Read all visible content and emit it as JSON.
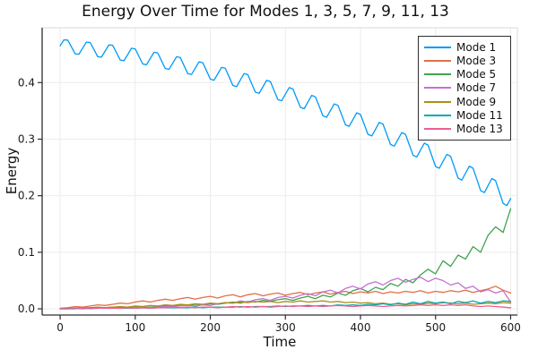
{
  "title": "Energy Over Time for Modes 1, 3, 5, 7, 9, 11, 13",
  "chart_data": {
    "type": "line",
    "title": "Energy Over Time for Modes 1, 3, 5, 7, 9, 11, 13",
    "xlabel": "Time",
    "ylabel": "Energy",
    "xlim": [
      -24,
      609
    ],
    "ylim": [
      -0.011,
      0.497
    ],
    "xticks": [
      0,
      100,
      200,
      300,
      400,
      500,
      600
    ],
    "xticklabels": [
      "0",
      "100",
      "200",
      "300",
      "400",
      "500",
      "600"
    ],
    "yticks": [
      0.0,
      0.1,
      0.2,
      0.3,
      0.4
    ],
    "yticklabels": [
      "0.0",
      "0.1",
      "0.2",
      "0.3",
      "0.4"
    ],
    "grid": true,
    "legend_position": "top-right",
    "background": "#ffffff",
    "grid_color": "#ececec",
    "spine_color": "#2e2e2e",
    "frame_color": "#d9d9d9",
    "series": [
      {
        "name": "Mode 1",
        "color": "#009AFA",
        "x_start": 0,
        "x_step": 5,
        "y": [
          0.465,
          0.4757,
          0.4751,
          0.4631,
          0.451,
          0.4502,
          0.4609,
          0.4717,
          0.4709,
          0.4585,
          0.4459,
          0.445,
          0.4558,
          0.4667,
          0.4658,
          0.4529,
          0.4399,
          0.4388,
          0.4497,
          0.4607,
          0.4596,
          0.4463,
          0.4329,
          0.4316,
          0.4427,
          0.4537,
          0.4525,
          0.4388,
          0.4249,
          0.4235,
          0.4346,
          0.4458,
          0.4443,
          0.4302,
          0.416,
          0.4144,
          0.4256,
          0.4369,
          0.4352,
          0.4207,
          0.406,
          0.4043,
          0.4155,
          0.4269,
          0.4252,
          0.4102,
          0.395,
          0.3931,
          0.4045,
          0.416,
          0.414,
          0.3986,
          0.3831,
          0.381,
          0.3925,
          0.404,
          0.402,
          0.3861,
          0.3701,
          0.3679,
          0.3795,
          0.3911,
          0.3888,
          0.3726,
          0.3563,
          0.3538,
          0.3655,
          0.3773,
          0.3748,
          0.3581,
          0.3413,
          0.3388,
          0.3505,
          0.3623,
          0.3598,
          0.3427,
          0.3254,
          0.3227,
          0.3345,
          0.3465,
          0.3437,
          0.3262,
          0.3085,
          0.3057,
          0.3176,
          0.3296,
          0.3267,
          0.3087,
          0.2906,
          0.2876,
          0.2996,
          0.3117,
          0.3086,
          0.2903,
          0.2718,
          0.2685,
          0.2807,
          0.2929,
          0.2896,
          0.2708,
          0.2519,
          0.2485,
          0.2607,
          0.273,
          0.2697,
          0.2504,
          0.2311,
          0.2275,
          0.2398,
          0.2522,
          0.2486,
          0.229,
          0.2092,
          0.2055,
          0.2179,
          0.2304,
          0.2267,
          0.2066,
          0.1863,
          0.1825,
          0.195
        ]
      },
      {
        "name": "Mode 3",
        "color": "#E26F47",
        "x_start": 0,
        "x_step": 10,
        "y": [
          0.001,
          0.002,
          0.004,
          0.003,
          0.005,
          0.007,
          0.006,
          0.008,
          0.01,
          0.009,
          0.012,
          0.014,
          0.012,
          0.015,
          0.017,
          0.015,
          0.018,
          0.02,
          0.017,
          0.02,
          0.022,
          0.019,
          0.023,
          0.025,
          0.021,
          0.025,
          0.027,
          0.023,
          0.026,
          0.028,
          0.024,
          0.027,
          0.029,
          0.025,
          0.028,
          0.03,
          0.026,
          0.029,
          0.031,
          0.027,
          0.03,
          0.028,
          0.031,
          0.027,
          0.03,
          0.028,
          0.031,
          0.029,
          0.032,
          0.028,
          0.031,
          0.029,
          0.032,
          0.03,
          0.033,
          0.029,
          0.032,
          0.035,
          0.04,
          0.033,
          0.028
        ]
      },
      {
        "name": "Mode 5",
        "color": "#3EA44E",
        "x_start": 0,
        "x_step": 10,
        "y": [
          0.0,
          0.0,
          0.001,
          0.001,
          0.001,
          0.002,
          0.002,
          0.003,
          0.002,
          0.003,
          0.004,
          0.004,
          0.005,
          0.004,
          0.006,
          0.005,
          0.007,
          0.006,
          0.008,
          0.007,
          0.009,
          0.008,
          0.01,
          0.012,
          0.01,
          0.013,
          0.012,
          0.015,
          0.013,
          0.016,
          0.018,
          0.015,
          0.019,
          0.022,
          0.018,
          0.024,
          0.021,
          0.028,
          0.024,
          0.032,
          0.036,
          0.03,
          0.038,
          0.034,
          0.045,
          0.04,
          0.052,
          0.046,
          0.06,
          0.07,
          0.062,
          0.085,
          0.075,
          0.095,
          0.088,
          0.11,
          0.1,
          0.13,
          0.145,
          0.135,
          0.177
        ]
      },
      {
        "name": "Mode 7",
        "color": "#C371D2",
        "x_start": 0,
        "x_step": 10,
        "y": [
          0.0,
          0.0,
          0.0,
          0.001,
          0.001,
          0.001,
          0.001,
          0.002,
          0.001,
          0.002,
          0.002,
          0.003,
          0.002,
          0.003,
          0.004,
          0.004,
          0.005,
          0.006,
          0.005,
          0.007,
          0.006,
          0.009,
          0.011,
          0.01,
          0.014,
          0.012,
          0.016,
          0.018,
          0.015,
          0.02,
          0.022,
          0.019,
          0.024,
          0.027,
          0.023,
          0.03,
          0.033,
          0.028,
          0.036,
          0.04,
          0.035,
          0.044,
          0.048,
          0.042,
          0.05,
          0.054,
          0.047,
          0.052,
          0.056,
          0.048,
          0.054,
          0.05,
          0.042,
          0.046,
          0.036,
          0.04,
          0.03,
          0.034,
          0.028,
          0.032,
          0.012
        ]
      },
      {
        "name": "Mode 9",
        "color": "#AC8E18",
        "x_start": 0,
        "x_step": 10,
        "y": [
          0.0,
          0.001,
          0.001,
          0.002,
          0.002,
          0.003,
          0.002,
          0.003,
          0.004,
          0.003,
          0.005,
          0.004,
          0.006,
          0.005,
          0.007,
          0.006,
          0.008,
          0.007,
          0.009,
          0.008,
          0.01,
          0.009,
          0.011,
          0.01,
          0.012,
          0.011,
          0.013,
          0.012,
          0.013,
          0.011,
          0.013,
          0.012,
          0.014,
          0.012,
          0.013,
          0.014,
          0.012,
          0.013,
          0.011,
          0.012,
          0.01,
          0.011,
          0.009,
          0.01,
          0.008,
          0.009,
          0.007,
          0.009,
          0.008,
          0.01,
          0.009,
          0.011,
          0.01,
          0.009,
          0.01,
          0.008,
          0.009,
          0.01,
          0.009,
          0.011,
          0.01
        ]
      },
      {
        "name": "Mode 11",
        "color": "#00AAAE",
        "x_start": 0,
        "x_step": 10,
        "y": [
          0.0,
          0.0,
          0.001,
          0.0,
          0.001,
          0.001,
          0.001,
          0.001,
          0.001,
          0.001,
          0.001,
          0.002,
          0.001,
          0.002,
          0.002,
          0.002,
          0.002,
          0.002,
          0.003,
          0.002,
          0.003,
          0.003,
          0.003,
          0.003,
          0.004,
          0.003,
          0.004,
          0.004,
          0.004,
          0.005,
          0.004,
          0.005,
          0.005,
          0.006,
          0.005,
          0.006,
          0.005,
          0.007,
          0.006,
          0.007,
          0.006,
          0.008,
          0.007,
          0.009,
          0.007,
          0.01,
          0.008,
          0.012,
          0.009,
          0.013,
          0.01,
          0.012,
          0.009,
          0.013,
          0.011,
          0.014,
          0.01,
          0.013,
          0.011,
          0.014,
          0.013
        ]
      },
      {
        "name": "Mode 13",
        "color": "#ED5E93",
        "x_start": 0,
        "x_step": 10,
        "y": [
          0.0,
          0.0,
          0.0,
          0.001,
          0.0,
          0.001,
          0.001,
          0.001,
          0.001,
          0.002,
          0.001,
          0.002,
          0.001,
          0.002,
          0.002,
          0.003,
          0.002,
          0.003,
          0.002,
          0.003,
          0.003,
          0.002,
          0.003,
          0.004,
          0.003,
          0.004,
          0.003,
          0.004,
          0.003,
          0.004,
          0.005,
          0.004,
          0.005,
          0.004,
          0.005,
          0.004,
          0.005,
          0.006,
          0.005,
          0.004,
          0.005,
          0.006,
          0.005,
          0.004,
          0.005,
          0.006,
          0.005,
          0.006,
          0.007,
          0.006,
          0.007,
          0.006,
          0.007,
          0.006,
          0.007,
          0.005,
          0.004,
          0.005,
          0.004,
          0.003,
          0.002
        ]
      }
    ]
  }
}
